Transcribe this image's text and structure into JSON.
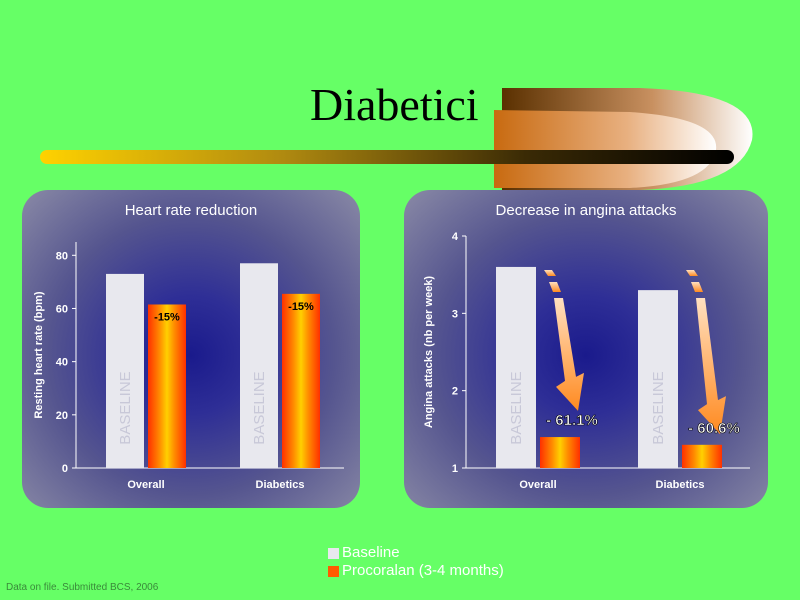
{
  "slide": {
    "title": "Diabetici",
    "footnote": "Data on file. Submitted BCS, 2006"
  },
  "legend": {
    "items": [
      {
        "label": "Baseline",
        "color": "#e8e8ee"
      },
      {
        "label": "Procoralan (3-4 months)",
        "color": "#ff5a00"
      }
    ]
  },
  "chart_data": [
    {
      "type": "bar",
      "title": "Heart rate reduction",
      "ylabel": "Resting heart rate (bpm)",
      "xlabel": "",
      "categories": [
        "Overall",
        "Diabetics"
      ],
      "ylim": [
        0,
        85
      ],
      "yticks": [
        0,
        20,
        40,
        60,
        80
      ],
      "series": [
        {
          "name": "Baseline",
          "values": [
            73,
            77
          ],
          "bar_text": "BASELINE"
        },
        {
          "name": "Procoralan (3-4 months)",
          "values": [
            61.5,
            65.5
          ]
        }
      ],
      "annotations": [
        "-15%",
        "-15%"
      ],
      "grid": false
    },
    {
      "type": "bar",
      "title": "Decrease in angina attacks",
      "ylabel": "Angina attacks (nb per week)",
      "xlabel": "",
      "categories": [
        "Overall",
        "Diabetics"
      ],
      "ylim": [
        1,
        4
      ],
      "yticks": [
        1,
        2,
        3,
        4
      ],
      "series": [
        {
          "name": "Baseline",
          "values": [
            3.6,
            3.3
          ],
          "bar_text": "BASELINE"
        },
        {
          "name": "Procoralan (3-4 months)",
          "values": [
            1.4,
            1.3
          ]
        }
      ],
      "annotations": [
        "- 61.1%",
        "- 60.6%"
      ],
      "grid": false
    }
  ]
}
